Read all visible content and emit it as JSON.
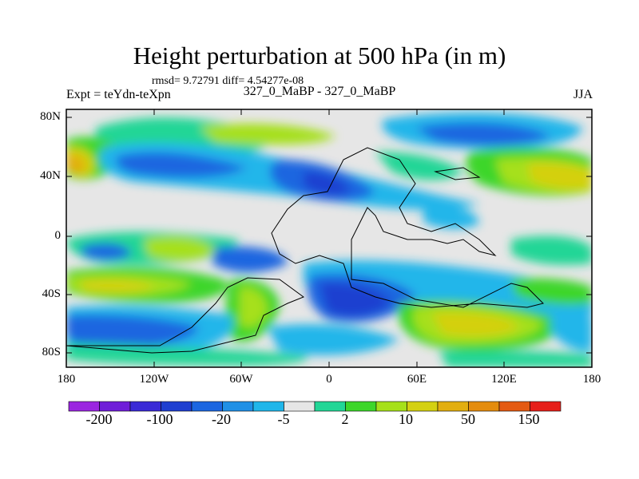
{
  "title": "Height perturbation at 500 hPa (in m)",
  "stats": "rmsd= 9.72791 diff= 4.54277e-08",
  "experiment": "Expt = teYdn-teXpn",
  "runs": "327_0_MaBP - 327_0_MaBP",
  "season": "JJA",
  "lat_ticks": [
    "80N",
    "40N",
    "0",
    "40S",
    "80S"
  ],
  "lon_ticks": [
    "180",
    "120W",
    "60W",
    "0",
    "60E",
    "120E",
    "180"
  ],
  "colorbar": {
    "colors": [
      "#9b26e0",
      "#6f1ed8",
      "#3a2ad6",
      "#1f3fd0",
      "#1c66e0",
      "#2090e6",
      "#20b6ea",
      "#e6e6e6",
      "#22d696",
      "#3dd62a",
      "#a6e01a",
      "#d4d011",
      "#e2ae10",
      "#e48c0e",
      "#e45a12",
      "#e61f1a"
    ],
    "labels": [
      "-200",
      "-100",
      "-20",
      "-5",
      "2",
      "10",
      "50",
      "150"
    ]
  },
  "legend_colors": {
    "neutral": "#e6e6e6",
    "light_blue": "#20b6ea",
    "mid_blue": "#2090e6",
    "blue": "#1c66e0",
    "dark_blue": "#1f3fd0",
    "teal": "#22d696",
    "green": "#3dd62a",
    "yellow_green": "#a6e01a",
    "yellow": "#d4d011",
    "orange": "#e2ae10"
  }
}
